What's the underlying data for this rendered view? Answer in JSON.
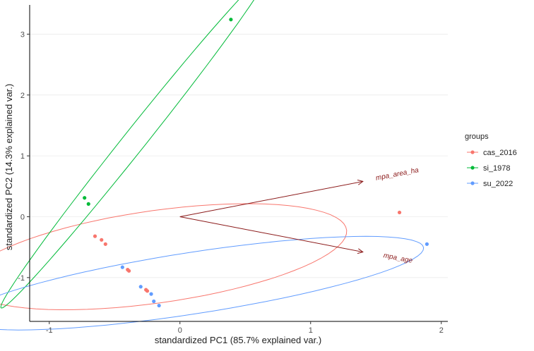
{
  "chart_data": {
    "type": "scatter",
    "xlabel": "standardized PC1 (85.7% explained var.)",
    "ylabel": "standardized PC2 (14.3% explained var.)",
    "xlim": [
      -1.15,
      2.05
    ],
    "ylim": [
      -1.72,
      3.48
    ],
    "x_ticks": [
      -1,
      0,
      1,
      2
    ],
    "y_ticks": [
      -1,
      0,
      1,
      2,
      3
    ],
    "grid": true,
    "legend_position": "right",
    "legend_title": "groups",
    "series": [
      {
        "name": "cas_2016",
        "color": "#F8766D",
        "points": [
          [
            -0.65,
            -0.32
          ],
          [
            -0.6,
            -0.38
          ],
          [
            -0.57,
            -0.45
          ],
          [
            -0.4,
            -0.87
          ],
          [
            -0.39,
            -0.89
          ],
          [
            -0.26,
            -1.2
          ],
          [
            -0.25,
            -1.22
          ],
          [
            1.68,
            0.07
          ]
        ]
      },
      {
        "name": "si_1978",
        "color": "#00BA38",
        "points": [
          [
            0.39,
            3.24
          ],
          [
            -0.73,
            0.31
          ],
          [
            -0.7,
            0.21
          ]
        ]
      },
      {
        "name": "su_2022",
        "color": "#619CFF",
        "points": [
          [
            -0.44,
            -0.83
          ],
          [
            -0.3,
            -1.15
          ],
          [
            -0.22,
            -1.27
          ],
          [
            -0.2,
            -1.39
          ],
          [
            -0.16,
            -1.46
          ],
          [
            1.89,
            -0.45
          ]
        ]
      }
    ],
    "loadings": [
      {
        "label": "mpa_area_ha",
        "x": 1.4,
        "y": 0.58
      },
      {
        "label": "mpa_age",
        "x": 1.4,
        "y": -0.58
      }
    ],
    "arrow_color": "#8b1a1a"
  }
}
